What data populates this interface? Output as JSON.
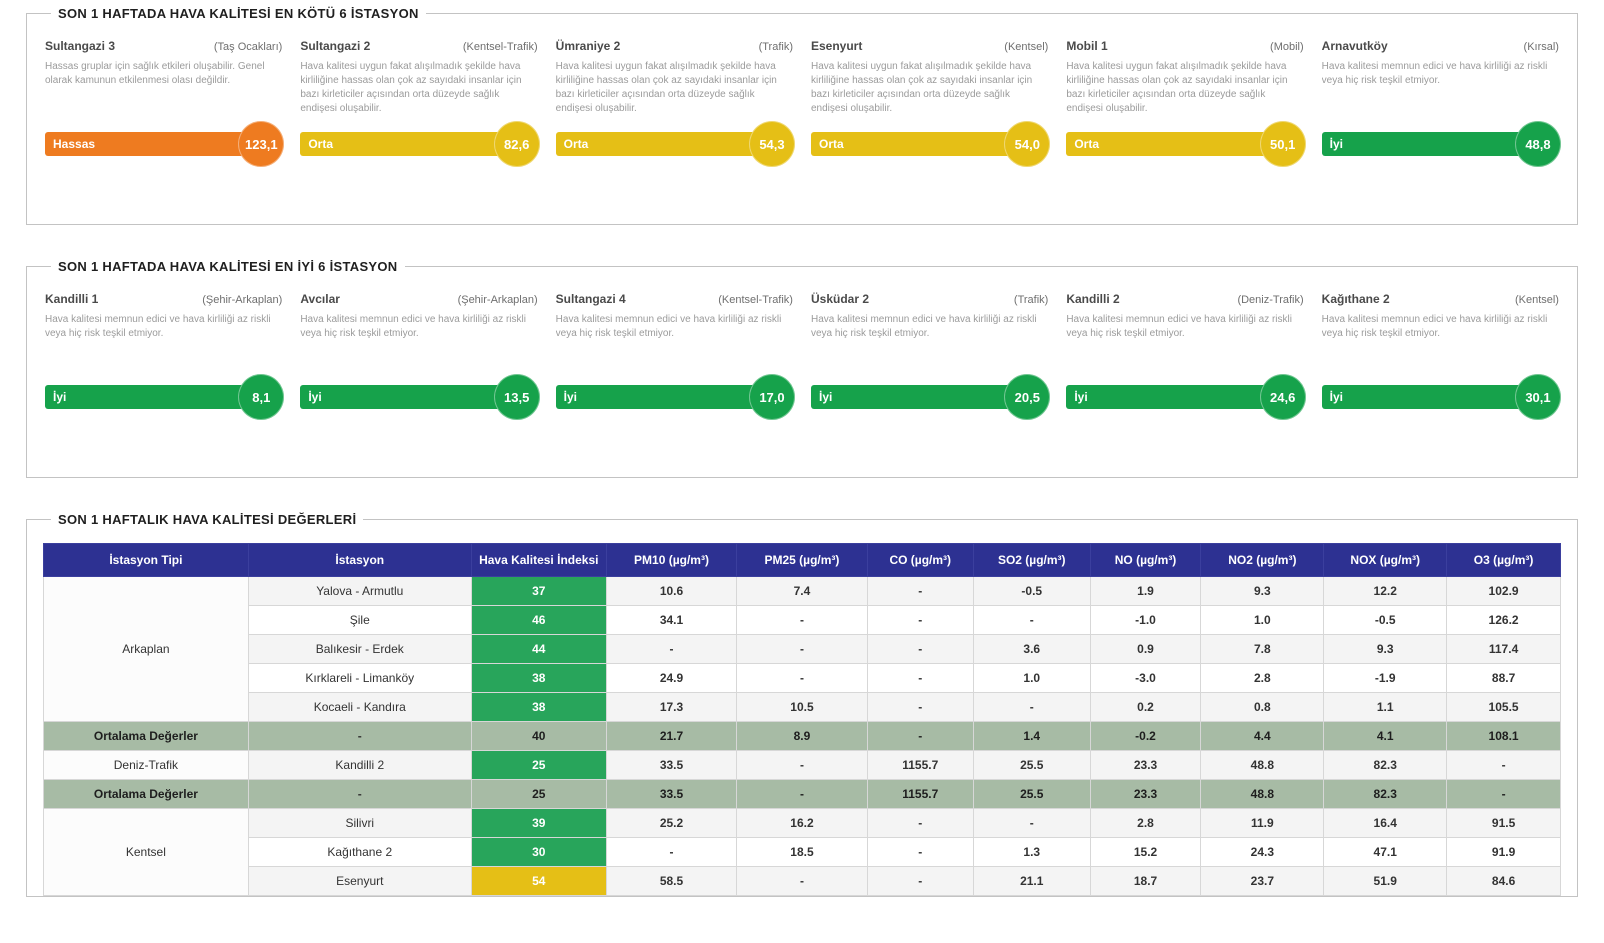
{
  "palette": {
    "hassas_orange": "#ee7b20",
    "orta_yellow": "#e5bf16",
    "iyi_green": "#16a24b",
    "table_green": "#28a55b",
    "table_yellow": "#e5bf16",
    "header_blue": "#2d3192",
    "average_row": "#a7bba5"
  },
  "worst": {
    "title": "SON 1 HAFTADA HAVA KALİTESİ EN KÖTÜ 6 İSTASYON",
    "stations": [
      {
        "name": "Sultangazi 3",
        "type": "(Taş Ocakları)",
        "desc": "Hassas gruplar için sağlık etkileri oluşabilir. Genel olarak kamunun etkilenmesi olası değildir.",
        "status": "Hassas",
        "value": "123,1",
        "color": "#ee7b20"
      },
      {
        "name": "Sultangazi 2",
        "type": "(Kentsel-Trafik)",
        "desc": "Hava kalitesi uygun fakat alışılmadık şekilde hava kirliliğine hassas olan çok az sayıdaki insanlar için bazı kirleticiler açısından orta düzeyde sağlık endişesi oluşabilir.",
        "status": "Orta",
        "value": "82,6",
        "color": "#e5bf16"
      },
      {
        "name": "Ümraniye 2",
        "type": "(Trafik)",
        "desc": "Hava kalitesi uygun fakat alışılmadık şekilde hava kirliliğine hassas olan çok az sayıdaki insanlar için bazı kirleticiler açısından orta düzeyde sağlık endişesi oluşabilir.",
        "status": "Orta",
        "value": "54,3",
        "color": "#e5bf16"
      },
      {
        "name": "Esenyurt",
        "type": "(Kentsel)",
        "desc": "Hava kalitesi uygun fakat alışılmadık şekilde hava kirliliğine hassas olan çok az sayıdaki insanlar için bazı kirleticiler açısından orta düzeyde sağlık endişesi oluşabilir.",
        "status": "Orta",
        "value": "54,0",
        "color": "#e5bf16"
      },
      {
        "name": "Mobil 1",
        "type": "(Mobil)",
        "desc": "Hava kalitesi uygun fakat alışılmadık şekilde hava kirliliğine hassas olan çok az sayıdaki insanlar için bazı kirleticiler açısından orta düzeyde sağlık endişesi oluşabilir.",
        "status": "Orta",
        "value": "50,1",
        "color": "#e5bf16"
      },
      {
        "name": "Arnavutköy",
        "type": "(Kırsal)",
        "desc": "Hava kalitesi memnun edici ve hava kirliliği az riskli veya hiç risk teşkil etmiyor.",
        "status": "İyi",
        "value": "48,8",
        "color": "#16a24b"
      }
    ]
  },
  "best": {
    "title": "SON 1 HAFTADA HAVA KALİTESİ EN İYİ 6 İSTASYON",
    "stations": [
      {
        "name": "Kandilli 1",
        "type": "(Şehir-Arkaplan)",
        "desc": "Hava kalitesi memnun edici ve hava kirliliği az riskli veya hiç risk teşkil etmiyor.",
        "status": "İyi",
        "value": "8,1",
        "color": "#16a24b"
      },
      {
        "name": "Avcılar",
        "type": "(Şehir-Arkaplan)",
        "desc": "Hava kalitesi memnun edici ve hava kirliliği az riskli veya hiç risk teşkil etmiyor.",
        "status": "İyi",
        "value": "13,5",
        "color": "#16a24b"
      },
      {
        "name": "Sultangazi 4",
        "type": "(Kentsel-Trafik)",
        "desc": "Hava kalitesi memnun edici ve hava kirliliği az riskli veya hiç risk teşkil etmiyor.",
        "status": "İyi",
        "value": "17,0",
        "color": "#16a24b"
      },
      {
        "name": "Üsküdar 2",
        "type": "(Trafik)",
        "desc": "Hava kalitesi memnun edici ve hava kirliliği az riskli veya hiç risk teşkil etmiyor.",
        "status": "İyi",
        "value": "20,5",
        "color": "#16a24b"
      },
      {
        "name": "Kandilli 2",
        "type": "(Deniz-Trafik)",
        "desc": "Hava kalitesi memnun edici ve hava kirliliği az riskli veya hiç risk teşkil etmiyor.",
        "status": "İyi",
        "value": "24,6",
        "color": "#16a24b"
      },
      {
        "name": "Kağıthane 2",
        "type": "(Kentsel)",
        "desc": "Hava kalitesi memnun edici ve hava kirliliği az riskli veya hiç risk teşkil etmiyor.",
        "status": "İyi",
        "value": "30,1",
        "color": "#16a24b"
      }
    ]
  },
  "table": {
    "title": "SON 1 HAFTALIK HAVA KALİTESİ DEĞERLERİ",
    "headers": [
      "İstasyon Tipi",
      "İstasyon",
      "Hava Kalitesi İndeksi",
      "PM10 (µg/m³)",
      "PM25 (µg/m³)",
      "CO (µg/m³)",
      "SO2 (µg/m³)",
      "NO (µg/m³)",
      "NO2 (µg/m³)",
      "NOX (µg/m³)",
      "O3 (µg/m³)"
    ],
    "rows": [
      {
        "type": "Arkaplan",
        "typeSpan": 5,
        "station": "Yalova - Armutlu",
        "index": "37",
        "indexStyle": "green",
        "values": [
          "10.6",
          "7.4",
          "-",
          "-0.5",
          "1.9",
          "9.3",
          "12.2",
          "102.9"
        ],
        "avg": false
      },
      {
        "station": "Şile",
        "index": "46",
        "indexStyle": "green",
        "values": [
          "34.1",
          "-",
          "-",
          "-",
          "-1.0",
          "1.0",
          "-0.5",
          "126.2"
        ],
        "avg": false
      },
      {
        "station": "Balıkesir - Erdek",
        "index": "44",
        "indexStyle": "green",
        "values": [
          "-",
          "-",
          "-",
          "3.6",
          "0.9",
          "7.8",
          "9.3",
          "117.4"
        ],
        "avg": false
      },
      {
        "station": "Kırklareli - Limanköy",
        "index": "38",
        "indexStyle": "green",
        "values": [
          "24.9",
          "-",
          "-",
          "1.0",
          "-3.0",
          "2.8",
          "-1.9",
          "88.7"
        ],
        "avg": false
      },
      {
        "station": "Kocaeli - Kandıra",
        "index": "38",
        "indexStyle": "green",
        "values": [
          "17.3",
          "10.5",
          "-",
          "-",
          "0.2",
          "0.8",
          "1.1",
          "105.5"
        ],
        "avg": false
      },
      {
        "type": "Ortalama Değerler",
        "typeSpan": 1,
        "station": "-",
        "index": "40",
        "indexStyle": "avg",
        "values": [
          "21.7",
          "8.9",
          "-",
          "1.4",
          "-0.2",
          "4.4",
          "4.1",
          "108.1"
        ],
        "avg": true
      },
      {
        "type": "Deniz-Trafik",
        "typeSpan": 1,
        "station": "Kandilli 2",
        "index": "25",
        "indexStyle": "green",
        "values": [
          "33.5",
          "-",
          "1155.7",
          "25.5",
          "23.3",
          "48.8",
          "82.3",
          "-"
        ],
        "avg": false
      },
      {
        "type": "Ortalama Değerler",
        "typeSpan": 1,
        "station": "-",
        "index": "25",
        "indexStyle": "avg",
        "values": [
          "33.5",
          "-",
          "1155.7",
          "25.5",
          "23.3",
          "48.8",
          "82.3",
          "-"
        ],
        "avg": true
      },
      {
        "type": "Kentsel",
        "typeSpan": 3,
        "station": "Silivri",
        "index": "39",
        "indexStyle": "green",
        "values": [
          "25.2",
          "16.2",
          "-",
          "-",
          "2.8",
          "11.9",
          "16.4",
          "91.5"
        ],
        "avg": false
      },
      {
        "station": "Kağıthane 2",
        "index": "30",
        "indexStyle": "green",
        "values": [
          "-",
          "18.5",
          "-",
          "1.3",
          "15.2",
          "24.3",
          "47.1",
          "91.9"
        ],
        "avg": false
      },
      {
        "station": "Esenyurt",
        "index": "54",
        "indexStyle": "yellow",
        "values": [
          "58.5",
          "-",
          "-",
          "21.1",
          "18.7",
          "23.7",
          "51.9",
          "84.6"
        ],
        "avg": false
      }
    ]
  }
}
